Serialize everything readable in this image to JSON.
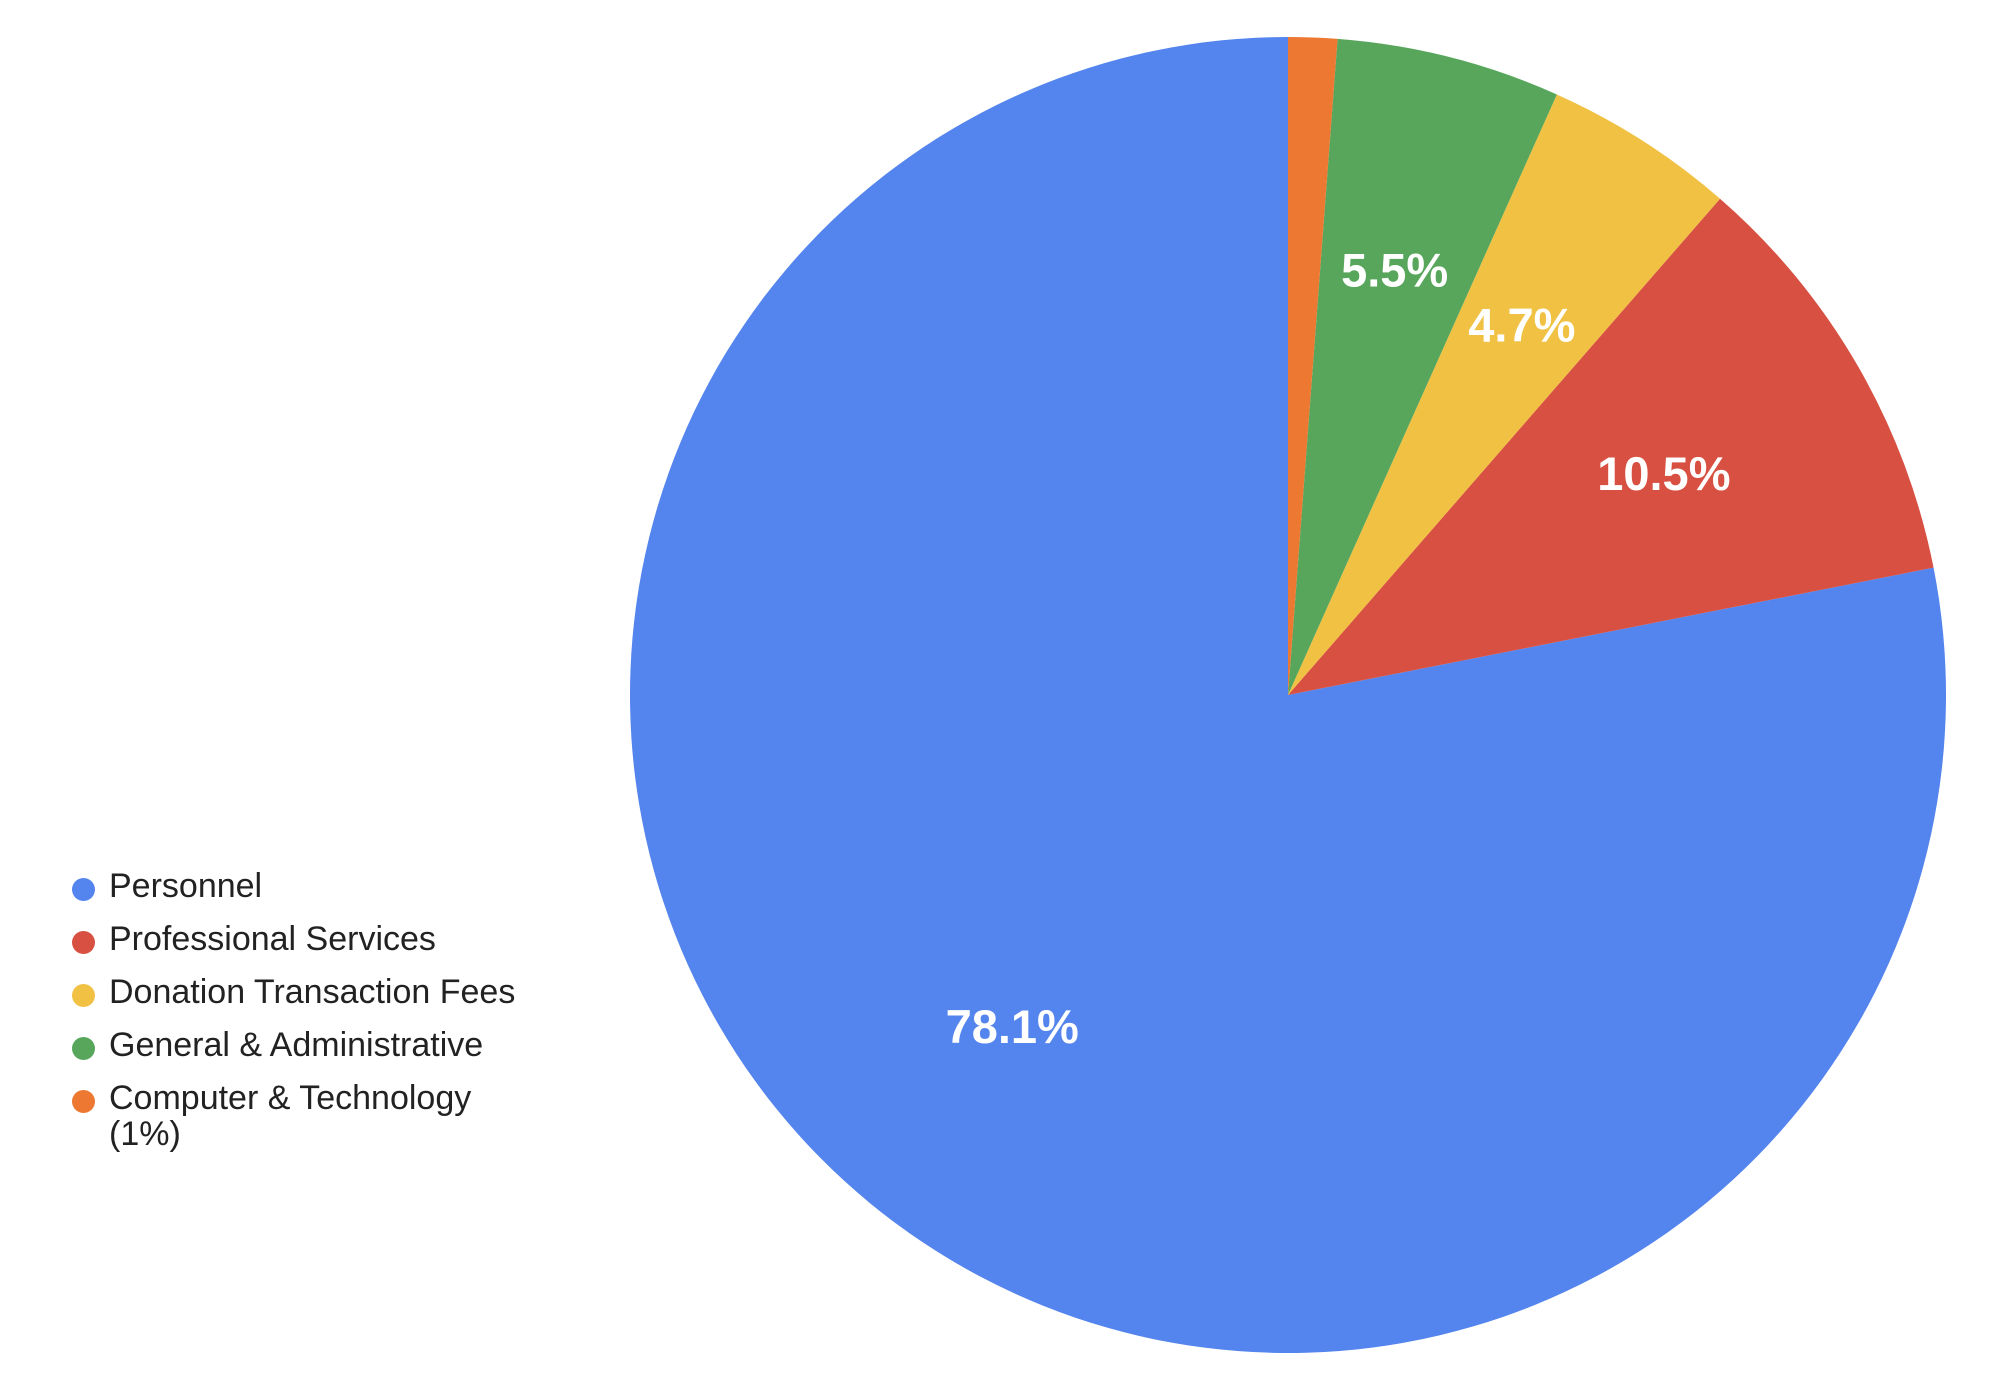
{
  "chart_data": {
    "type": "pie",
    "title": "",
    "legend_position": "left",
    "start_angle_deg": 0,
    "slices": [
      {
        "label": "Personnel",
        "value": 78.1,
        "value_label": "78.1%",
        "color": "#5484ED"
      },
      {
        "label": "Professional Services",
        "value": 10.5,
        "value_label": "10.5%",
        "color": "#D75041"
      },
      {
        "label": "Donation Transaction Fees",
        "value": 4.7,
        "value_label": "4.7%",
        "color": "#F1C144"
      },
      {
        "label": "General & Administrative",
        "value": 5.5,
        "value_label": "5.5%",
        "color": "#58A65C"
      },
      {
        "label": "Computer & Technology (1%)",
        "value": 1.2,
        "value_label": "",
        "color": "#EC7832"
      }
    ]
  }
}
